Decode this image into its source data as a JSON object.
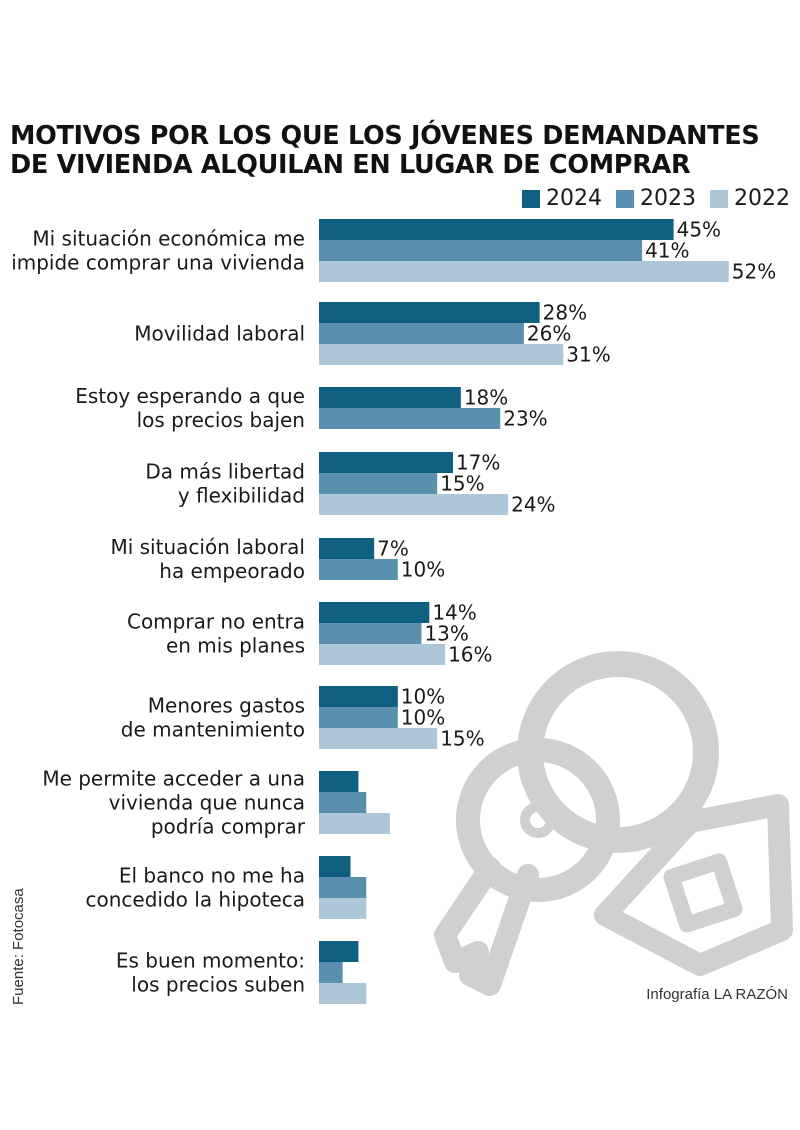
{
  "title_lines": [
    "MOTIVOS POR LOS QUE LOS JÓVENES DEMANDANTES",
    "DE VIVIENDA ALQUILAN EN LUGAR DE COMPRAR"
  ],
  "source": "Fuente: Fotocasa",
  "credit": "Infografía LA RAZÓN",
  "colors": {
    "2024": "#0f5f80",
    "2023": "#5b8fae",
    "2022": "#adc7d9",
    "illustration": "#cfcfcf"
  },
  "illustration_icon": "house-keys-icon",
  "chart_data": {
    "type": "bar",
    "orientation": "horizontal",
    "title": "MOTIVOS POR LOS QUE LOS JÓVENES DEMANDANTES DE VIVIENDA ALQUILAN EN LUGAR DE COMPRAR",
    "legend_position": "top-right",
    "unit": "%",
    "xlim": [
      0,
      52
    ],
    "categories": [
      [
        "Mi situación económica me",
        "impide comprar una vivienda"
      ],
      [
        "Movilidad laboral"
      ],
      [
        "Estoy esperando a que",
        "los precios bajen"
      ],
      [
        "Da más libertad",
        "y flexibilidad"
      ],
      [
        "Mi situación laboral",
        "ha empeorado"
      ],
      [
        "Comprar no entra",
        "en mis planes"
      ],
      [
        "Menores gastos",
        "de mantenimiento"
      ],
      [
        "Me permite acceder a una",
        "vivienda que nunca",
        "podría comprar"
      ],
      [
        "El banco no me ha",
        "concedido la hipoteca"
      ],
      [
        "Es buen momento:",
        "los precios suben"
      ]
    ],
    "series": [
      {
        "name": "2024",
        "values": [
          45,
          28,
          18,
          17,
          7,
          14,
          10,
          5,
          4,
          5
        ],
        "labels": [
          "45%",
          "28%",
          "18%",
          "17%",
          "7%",
          "14%",
          "10%",
          null,
          null,
          null
        ]
      },
      {
        "name": "2023",
        "values": [
          41,
          26,
          23,
          15,
          10,
          13,
          10,
          6,
          6,
          3
        ],
        "labels": [
          "41%",
          "26%",
          "23%",
          "15%",
          "10%",
          "13%",
          "10%",
          null,
          null,
          null
        ]
      },
      {
        "name": "2022",
        "values": [
          52,
          31,
          null,
          24,
          null,
          16,
          15,
          9,
          6,
          6
        ],
        "labels": [
          "52%",
          "31%",
          null,
          "24%",
          null,
          "16%",
          "15%",
          null,
          null,
          null
        ]
      }
    ]
  }
}
